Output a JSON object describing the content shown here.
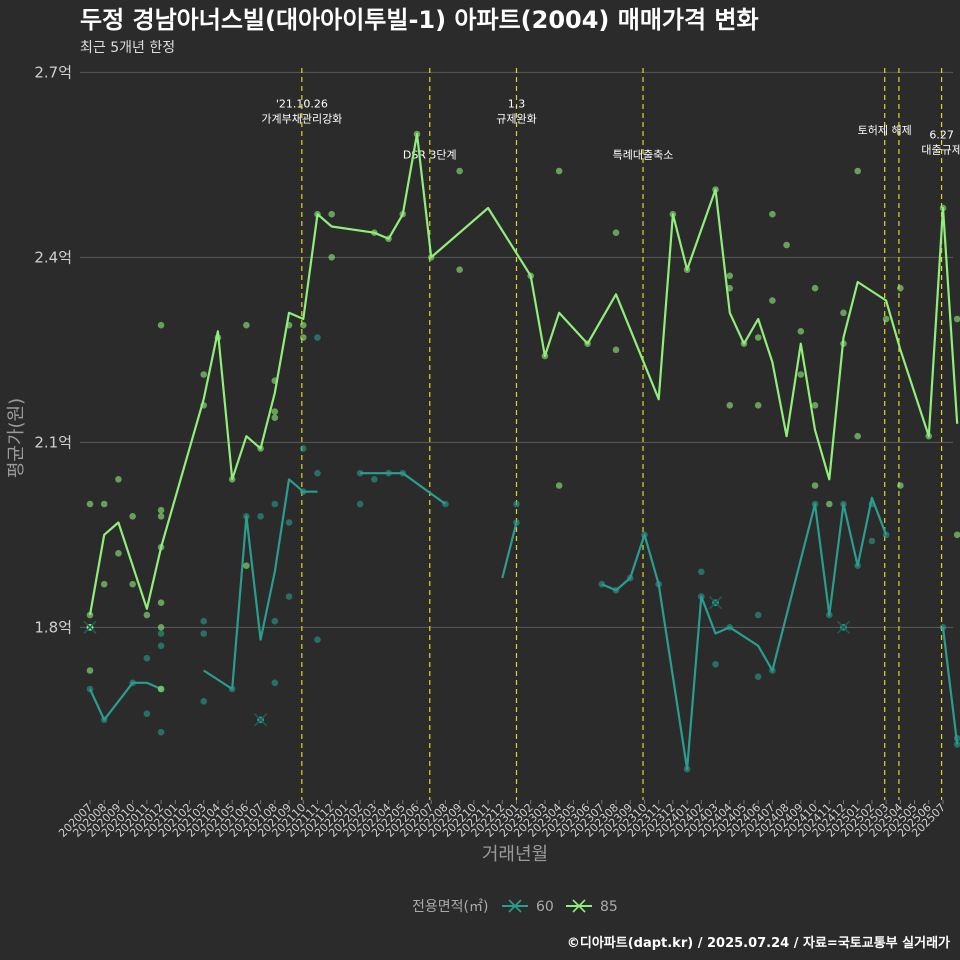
{
  "chart_data": {
    "type": "line",
    "title": "두정 경남아너스빌(대아아이투빌-1) 아파트(2004) 매매가격 변화",
    "subtitle": "최근 5개년 한정",
    "xlabel": "거래년월",
    "ylabel": "평균가(원)",
    "ylim": [
      1.52,
      2.72
    ],
    "yticks": [
      1.8,
      2.1,
      2.4,
      2.7
    ],
    "ytick_labels": [
      "1.8억",
      "2.1억",
      "2.4억",
      "2.7억"
    ],
    "categories": [
      "202007",
      "202008",
      "202009",
      "202010",
      "202011",
      "202012",
      "202101",
      "202102",
      "202103",
      "202104",
      "202105",
      "202106",
      "202107",
      "202108",
      "202109",
      "202110",
      "202111",
      "202112",
      "202201",
      "202202",
      "202203",
      "202204",
      "202205",
      "202206",
      "202207",
      "202208",
      "202209",
      "202210",
      "202211",
      "202212",
      "202301",
      "202302",
      "202303",
      "202304",
      "202305",
      "202306",
      "202307",
      "202308",
      "202309",
      "202310",
      "202311",
      "202312",
      "202401",
      "202402",
      "202403",
      "202404",
      "202405",
      "202406",
      "202407",
      "202408",
      "202409",
      "202410",
      "202411",
      "202412",
      "202501",
      "202502",
      "202503",
      "202504",
      "202505",
      "202506",
      "202507"
    ],
    "legend": {
      "title": "전용면적(㎡)",
      "position": "bottom"
    },
    "series": [
      {
        "name": "60",
        "color": "#2a9d8f",
        "line": [
          [
            0,
            1.7
          ],
          [
            1,
            1.65
          ],
          [
            3,
            1.71
          ],
          [
            4,
            1.71
          ],
          [
            5,
            1.7
          ],
          [
            null,
            null
          ],
          [
            8,
            1.73
          ],
          [
            10,
            1.7
          ],
          [
            11,
            1.98
          ],
          [
            12,
            1.78
          ],
          [
            13,
            1.89
          ],
          [
            14,
            2.04
          ],
          [
            15,
            2.02
          ],
          [
            16,
            2.02
          ],
          [
            null,
            null
          ],
          [
            19,
            2.05
          ],
          [
            20,
            2.05
          ],
          [
            21,
            2.05
          ],
          [
            22,
            2.05
          ],
          [
            25,
            2.0
          ],
          [
            null,
            null
          ],
          [
            29,
            1.88
          ],
          [
            30,
            1.97
          ],
          [
            null,
            null
          ],
          [
            36,
            1.87
          ],
          [
            37,
            1.86
          ],
          [
            38,
            1.88
          ],
          [
            39,
            1.95
          ],
          [
            40,
            1.87
          ],
          [
            42,
            1.57
          ],
          [
            43,
            1.85
          ],
          [
            44,
            1.79
          ],
          [
            45,
            1.8
          ],
          [
            47,
            1.77
          ],
          [
            48,
            1.73
          ],
          [
            51,
            2.0
          ],
          [
            52,
            1.82
          ],
          [
            53,
            2.0
          ],
          [
            54,
            1.9
          ],
          [
            55,
            2.01
          ],
          [
            56,
            1.95
          ],
          [
            null,
            null
          ],
          [
            60,
            1.8
          ],
          [
            61,
            1.61
          ]
        ],
        "points": [
          [
            0,
            1.7
          ],
          [
            1,
            1.65
          ],
          [
            3,
            1.71
          ],
          [
            4,
            1.66
          ],
          [
            4,
            1.75
          ],
          [
            5,
            1.7
          ],
          [
            5,
            1.77
          ],
          [
            5,
            1.79
          ],
          [
            5,
            1.63
          ],
          [
            8,
            1.81
          ],
          [
            8,
            1.68
          ],
          [
            8,
            1.79
          ],
          [
            10,
            1.7
          ],
          [
            11,
            1.98
          ],
          [
            12,
            1.65
          ],
          [
            12,
            1.98
          ],
          [
            13,
            1.81
          ],
          [
            13,
            2.0
          ],
          [
            13,
            1.71
          ],
          [
            14,
            1.97
          ],
          [
            14,
            1.85
          ],
          [
            15,
            2.09
          ],
          [
            15,
            2.02
          ],
          [
            16,
            2.05
          ],
          [
            16,
            1.78
          ],
          [
            16,
            2.27
          ],
          [
            19,
            2.0
          ],
          [
            19,
            2.05
          ],
          [
            20,
            2.04
          ],
          [
            21,
            2.05
          ],
          [
            22,
            2.05
          ],
          [
            25,
            2.0
          ],
          [
            30,
            2.0
          ],
          [
            30,
            1.97
          ],
          [
            36,
            1.87
          ],
          [
            37,
            1.86
          ],
          [
            38,
            1.88
          ],
          [
            39,
            1.95
          ],
          [
            40,
            1.87
          ],
          [
            42,
            1.57
          ],
          [
            43,
            1.85
          ],
          [
            43,
            1.89
          ],
          [
            44,
            1.84
          ],
          [
            44,
            1.74
          ],
          [
            45,
            1.8
          ],
          [
            47,
            1.82
          ],
          [
            47,
            1.72
          ],
          [
            48,
            1.73
          ],
          [
            51,
            2.0
          ],
          [
            52,
            1.82
          ],
          [
            53,
            2.0
          ],
          [
            54,
            1.9
          ],
          [
            55,
            2.0
          ],
          [
            55,
            1.94
          ],
          [
            56,
            1.95
          ],
          [
            60,
            1.8
          ],
          [
            61,
            1.61
          ],
          [
            61,
            1.62
          ]
        ],
        "crosses": [
          [
            0,
            1.8
          ],
          [
            12,
            1.65
          ],
          [
            44,
            1.84
          ],
          [
            53,
            1.8
          ]
        ]
      },
      {
        "name": "85",
        "color": "#90ee7a",
        "line": [
          [
            0,
            1.82
          ],
          [
            1,
            1.95
          ],
          [
            2,
            1.97
          ],
          [
            3,
            1.9
          ],
          [
            4,
            1.83
          ],
          [
            5,
            1.93
          ],
          [
            6,
            2.01
          ],
          [
            7,
            2.09
          ],
          [
            8,
            2.17
          ],
          [
            9,
            2.28
          ],
          [
            10,
            2.04
          ],
          [
            11,
            2.11
          ],
          [
            12,
            2.09
          ],
          [
            13,
            2.18
          ],
          [
            14,
            2.31
          ],
          [
            15,
            2.3
          ],
          [
            16,
            2.47
          ],
          [
            17,
            2.45
          ],
          [
            20,
            2.44
          ],
          [
            21,
            2.43
          ],
          [
            22,
            2.47
          ],
          [
            23,
            2.6
          ],
          [
            24,
            2.4
          ],
          [
            28,
            2.48
          ],
          [
            31,
            2.37
          ],
          [
            32,
            2.24
          ],
          [
            33,
            2.31
          ],
          [
            35,
            2.26
          ],
          [
            37,
            2.34
          ],
          [
            40,
            2.17
          ],
          [
            41,
            2.47
          ],
          [
            42,
            2.38
          ],
          [
            44,
            2.51
          ],
          [
            45,
            2.31
          ],
          [
            46,
            2.26
          ],
          [
            47,
            2.3
          ],
          [
            48,
            2.23
          ],
          [
            49,
            2.11
          ],
          [
            50,
            2.26
          ],
          [
            51,
            2.12
          ],
          [
            52,
            2.04
          ],
          [
            53,
            2.27
          ],
          [
            54,
            2.36
          ],
          [
            56,
            2.33
          ],
          [
            57,
            2.25
          ],
          [
            59,
            2.11
          ],
          [
            60,
            2.48
          ],
          [
            61,
            2.13
          ]
        ],
        "points": [
          [
            0,
            1.82
          ],
          [
            0,
            1.8
          ],
          [
            0,
            2.0
          ],
          [
            0,
            1.73
          ],
          [
            1,
            2.0
          ],
          [
            1,
            1.87
          ],
          [
            2,
            2.04
          ],
          [
            2,
            1.92
          ],
          [
            3,
            1.98
          ],
          [
            3,
            1.87
          ],
          [
            4,
            1.82
          ],
          [
            5,
            1.93
          ],
          [
            5,
            1.98
          ],
          [
            5,
            1.99
          ],
          [
            5,
            1.8
          ],
          [
            5,
            1.7
          ],
          [
            5,
            1.84
          ],
          [
            5,
            2.29
          ],
          [
            8,
            2.21
          ],
          [
            8,
            2.16
          ],
          [
            9,
            2.27
          ],
          [
            10,
            2.04
          ],
          [
            11,
            2.29
          ],
          [
            11,
            1.9
          ],
          [
            12,
            2.09
          ],
          [
            13,
            2.2
          ],
          [
            13,
            2.15
          ],
          [
            13,
            2.14
          ],
          [
            14,
            2.29
          ],
          [
            15,
            2.29
          ],
          [
            15,
            2.27
          ],
          [
            16,
            2.47
          ],
          [
            17,
            2.47
          ],
          [
            17,
            2.4
          ],
          [
            20,
            2.44
          ],
          [
            21,
            2.43
          ],
          [
            22,
            2.47
          ],
          [
            23,
            2.6
          ],
          [
            24,
            2.4
          ],
          [
            26,
            2.54
          ],
          [
            26,
            2.38
          ],
          [
            31,
            2.37
          ],
          [
            32,
            2.24
          ],
          [
            33,
            2.54
          ],
          [
            33,
            2.03
          ],
          [
            35,
            2.26
          ],
          [
            37,
            2.44
          ],
          [
            37,
            2.25
          ],
          [
            41,
            2.47
          ],
          [
            42,
            2.38
          ],
          [
            44,
            2.51
          ],
          [
            45,
            2.37
          ],
          [
            45,
            2.35
          ],
          [
            45,
            2.16
          ],
          [
            46,
            2.26
          ],
          [
            47,
            2.27
          ],
          [
            47,
            2.16
          ],
          [
            48,
            2.47
          ],
          [
            48,
            2.33
          ],
          [
            49,
            2.42
          ],
          [
            50,
            2.28
          ],
          [
            50,
            2.21
          ],
          [
            51,
            2.16
          ],
          [
            51,
            2.03
          ],
          [
            51,
            2.35
          ],
          [
            52,
            2.0
          ],
          [
            53,
            2.26
          ],
          [
            53,
            2.31
          ],
          [
            54,
            2.11
          ],
          [
            54,
            2.54
          ],
          [
            56,
            2.3
          ],
          [
            57,
            2.35
          ],
          [
            57,
            2.03
          ],
          [
            59,
            2.11
          ],
          [
            60,
            2.48
          ],
          [
            61,
            2.3
          ],
          [
            61,
            1.95
          ]
        ],
        "crosses": [
          [
            0,
            1.8
          ]
        ]
      }
    ],
    "vlines": [
      {
        "x": 14.9,
        "label": "'21.10.26\n가계부채관리강화",
        "label_y": 2.62
      },
      {
        "x": 23.9,
        "label": "DSR 3단계",
        "label_y": 2.56
      },
      {
        "x": 30.0,
        "label": "1.3\n규제완화",
        "label_y": 2.62
      },
      {
        "x": 38.9,
        "label": "특례대출축소",
        "label_y": 2.56
      },
      {
        "x": 55.9,
        "label": "토허제 해제",
        "label_y": 2.6
      },
      {
        "x": 56.9,
        "label": "",
        "label_y": 2.6
      },
      {
        "x": 59.9,
        "label": "6.27\n대출규제",
        "label_y": 2.57
      }
    ],
    "caption": "©디아파트(dapt.kr) / 2025.07.24 / 자료=국토교통부 실거래가",
    "grid": true
  }
}
